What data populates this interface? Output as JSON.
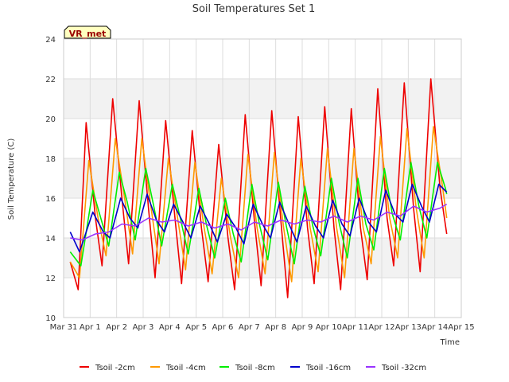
{
  "chart_data": {
    "type": "line",
    "title": "Soil Temperatures Set 1",
    "xlabel": "Time",
    "ylabel": "Soil Temperature (C)",
    "badge": "VR_met",
    "ylim": [
      10,
      24
    ],
    "yticks": [
      10,
      12,
      14,
      16,
      18,
      20,
      22,
      24
    ],
    "xlim": [
      0,
      15
    ],
    "xticks": [
      {
        "v": 0,
        "label": "Mar 31"
      },
      {
        "v": 1,
        "label": "Apr 1"
      },
      {
        "v": 2,
        "label": "Apr 2"
      },
      {
        "v": 3,
        "label": "Apr 3"
      },
      {
        "v": 4,
        "label": "Apr 4"
      },
      {
        "v": 5,
        "label": "Apr 5"
      },
      {
        "v": 6,
        "label": "Apr 6"
      },
      {
        "v": 7,
        "label": "Apr 7"
      },
      {
        "v": 8,
        "label": "Apr 8"
      },
      {
        "v": 9,
        "label": "Apr 9"
      },
      {
        "v": 10,
        "label": "Apr 10"
      },
      {
        "v": 11,
        "label": "Apr 11"
      },
      {
        "v": 12,
        "label": "Apr 12"
      },
      {
        "v": 13,
        "label": "Apr 13"
      },
      {
        "v": 14,
        "label": "Apr 14"
      },
      {
        "v": 15,
        "label": "Apr 15"
      }
    ],
    "grid": true,
    "legend_position": "bottom",
    "colors": {
      "band": "#f2f2f2",
      "grid": "#dddddd",
      "badge_bg": "#ffffc0"
    },
    "series": [
      {
        "name": "Tsoil -2cm",
        "color": "#ee0000",
        "x": [
          0.25,
          0.55,
          0.85,
          1.2,
          1.45,
          1.85,
          2.2,
          2.45,
          2.85,
          3.2,
          3.45,
          3.85,
          4.2,
          4.45,
          4.85,
          5.2,
          5.45,
          5.85,
          6.2,
          6.45,
          6.85,
          7.2,
          7.45,
          7.85,
          8.2,
          8.45,
          8.85,
          9.2,
          9.45,
          9.85,
          10.2,
          10.45,
          10.85,
          11.2,
          11.45,
          11.85,
          12.2,
          12.45,
          12.85,
          13.2,
          13.45,
          13.85,
          14.2,
          14.45
        ],
        "y": [
          12.8,
          11.4,
          19.8,
          15.0,
          12.6,
          21.0,
          16.0,
          12.7,
          20.9,
          15.5,
          12.0,
          19.9,
          15.0,
          11.7,
          19.4,
          14.5,
          11.8,
          18.7,
          14.0,
          11.4,
          20.2,
          14.8,
          11.6,
          20.4,
          14.8,
          11.0,
          20.1,
          14.5,
          11.7,
          20.6,
          14.5,
          11.4,
          20.5,
          14.5,
          11.9,
          21.5,
          15.0,
          12.6,
          21.8,
          15.5,
          12.3,
          22.0,
          16.5,
          14.2
        ]
      },
      {
        "name": "Tsoil -4cm",
        "color": "#ff9900",
        "x": [
          0.25,
          0.6,
          0.95,
          1.3,
          1.6,
          1.95,
          2.3,
          2.6,
          2.95,
          3.3,
          3.6,
          3.95,
          4.3,
          4.6,
          4.95,
          5.3,
          5.6,
          5.95,
          6.3,
          6.6,
          6.95,
          7.3,
          7.6,
          7.95,
          8.3,
          8.6,
          8.95,
          9.3,
          9.6,
          9.95,
          10.3,
          10.6,
          10.95,
          11.3,
          11.6,
          11.95,
          12.3,
          12.6,
          12.95,
          13.3,
          13.6,
          13.95,
          14.3,
          14.45
        ],
        "y": [
          12.8,
          12.0,
          17.9,
          15.0,
          13.1,
          19.0,
          16.0,
          13.2,
          19.0,
          15.5,
          12.7,
          18.0,
          15.0,
          12.4,
          17.8,
          14.5,
          12.2,
          17.0,
          14.0,
          12.0,
          18.2,
          14.5,
          12.2,
          18.3,
          14.5,
          11.8,
          18.0,
          14.5,
          12.3,
          18.5,
          14.5,
          12.0,
          18.5,
          14.5,
          12.7,
          19.1,
          15.0,
          13.0,
          19.5,
          15.5,
          13.0,
          19.6,
          16.5,
          15.0
        ]
      },
      {
        "name": "Tsoil -8cm",
        "color": "#00ee00",
        "x": [
          0.25,
          0.65,
          1.1,
          1.4,
          1.7,
          2.1,
          2.4,
          2.7,
          3.1,
          3.4,
          3.7,
          4.1,
          4.4,
          4.7,
          5.1,
          5.4,
          5.7,
          6.1,
          6.4,
          6.7,
          7.1,
          7.4,
          7.7,
          8.1,
          8.4,
          8.7,
          9.1,
          9.4,
          9.7,
          10.1,
          10.4,
          10.7,
          11.1,
          11.4,
          11.7,
          12.1,
          12.4,
          12.7,
          13.1,
          13.4,
          13.7,
          14.1,
          14.4,
          14.45
        ],
        "y": [
          13.3,
          12.6,
          16.4,
          15.0,
          13.6,
          17.3,
          15.8,
          13.9,
          17.5,
          15.6,
          13.6,
          16.7,
          15.0,
          13.2,
          16.5,
          14.6,
          13.0,
          16.0,
          14.2,
          12.8,
          16.7,
          14.6,
          12.9,
          16.8,
          14.6,
          12.7,
          16.6,
          14.6,
          13.1,
          17.0,
          14.7,
          13.0,
          17.0,
          14.7,
          13.4,
          17.5,
          15.2,
          13.9,
          17.8,
          15.6,
          14.0,
          17.8,
          16.5,
          16.2
        ]
      },
      {
        "name": "Tsoil -16cm",
        "color": "#0000cc",
        "x": [
          0.25,
          0.6,
          1.1,
          1.5,
          1.75,
          2.15,
          2.5,
          2.8,
          3.15,
          3.5,
          3.8,
          4.15,
          4.5,
          4.8,
          5.15,
          5.5,
          5.8,
          6.15,
          6.5,
          6.8,
          7.15,
          7.5,
          7.8,
          8.15,
          8.5,
          8.8,
          9.15,
          9.5,
          9.8,
          10.15,
          10.5,
          10.8,
          11.15,
          11.5,
          11.8,
          12.15,
          12.5,
          12.8,
          13.15,
          13.5,
          13.8,
          14.15,
          14.45
        ],
        "y": [
          14.3,
          13.3,
          15.3,
          14.3,
          14.0,
          16.0,
          15.0,
          14.5,
          16.2,
          14.9,
          14.3,
          15.7,
          14.8,
          14.0,
          15.6,
          14.7,
          13.8,
          15.2,
          14.5,
          13.7,
          15.7,
          14.7,
          14.0,
          15.8,
          14.7,
          13.8,
          15.6,
          14.6,
          14.0,
          15.9,
          14.7,
          14.1,
          16.0,
          14.8,
          14.3,
          16.4,
          15.2,
          14.8,
          16.7,
          15.6,
          14.8,
          16.7,
          16.3
        ]
      },
      {
        "name": "Tsoil -32cm",
        "color": "#9933ff",
        "x": [
          0.25,
          0.7,
          1.2,
          1.7,
          2.2,
          2.7,
          3.2,
          3.7,
          4.2,
          4.7,
          5.2,
          5.7,
          6.2,
          6.7,
          7.2,
          7.7,
          8.2,
          8.7,
          9.2,
          9.7,
          10.2,
          10.7,
          11.2,
          11.7,
          12.2,
          12.7,
          13.2,
          13.7,
          14.2,
          14.45
        ],
        "y": [
          14.0,
          13.9,
          14.2,
          14.3,
          14.7,
          14.6,
          15.0,
          14.8,
          14.9,
          14.6,
          14.8,
          14.5,
          14.7,
          14.4,
          14.8,
          14.6,
          14.9,
          14.7,
          14.9,
          14.8,
          15.1,
          14.8,
          15.1,
          14.9,
          15.3,
          15.1,
          15.6,
          15.3,
          15.5,
          15.7
        ]
      }
    ]
  }
}
